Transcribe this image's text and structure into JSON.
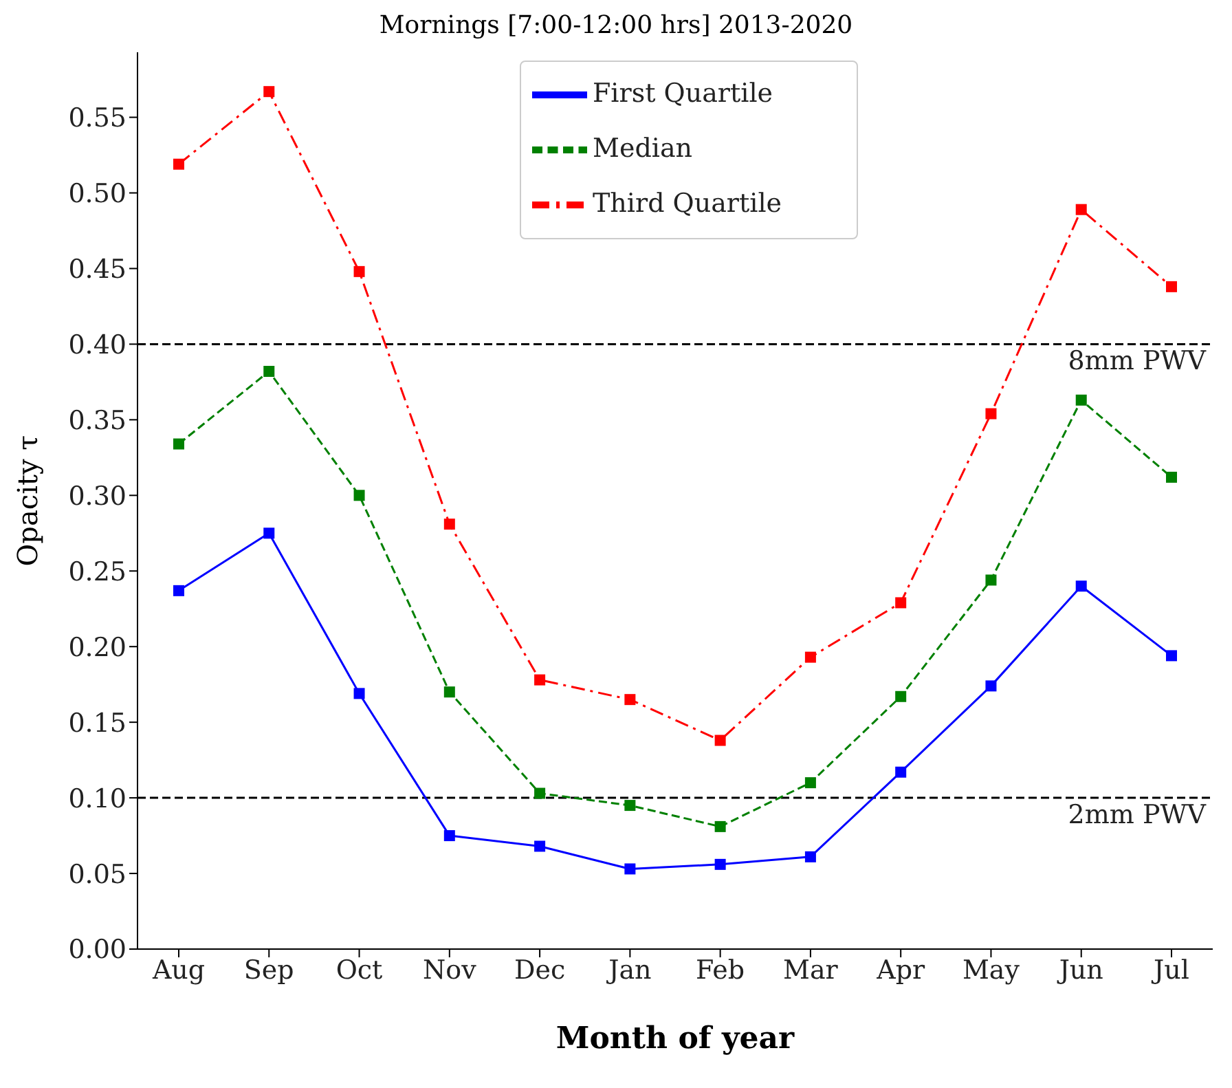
{
  "chart_data": {
    "type": "line",
    "title": "Mornings [7:00-12:00 hrs] 2013-2020",
    "xlabel": "Month of year",
    "ylabel": "Opacity τ",
    "categories": [
      "Aug",
      "Sep",
      "Oct",
      "Nov",
      "Dec",
      "Jan",
      "Feb",
      "Mar",
      "Apr",
      "May",
      "Jun",
      "Jul"
    ],
    "series": [
      {
        "name": "First Quartile",
        "color": "#0000ff",
        "line_style": "solid",
        "values": [
          0.237,
          0.275,
          0.169,
          0.075,
          0.068,
          0.053,
          0.056,
          0.061,
          0.117,
          0.174,
          0.24,
          0.194
        ]
      },
      {
        "name": "Median",
        "color": "#008000",
        "line_style": "dashed",
        "values": [
          0.334,
          0.382,
          0.3,
          0.17,
          0.103,
          0.095,
          0.081,
          0.11,
          0.167,
          0.244,
          0.363,
          0.312
        ]
      },
      {
        "name": "Third Quartile",
        "color": "#ff0000",
        "line_style": "dashdot",
        "values": [
          0.519,
          0.567,
          0.448,
          0.281,
          0.178,
          0.165,
          0.138,
          0.193,
          0.229,
          0.354,
          0.489,
          0.438
        ]
      }
    ],
    "ylim": [
      0,
      0.593
    ],
    "yticks": [
      {
        "value": 0,
        "label": "0.00"
      },
      {
        "value": 0.05,
        "label": "0.05"
      },
      {
        "value": 0.1,
        "label": "0.10"
      },
      {
        "value": 0.15,
        "label": "0.15"
      },
      {
        "value": 0.2,
        "label": "0.20"
      },
      {
        "value": 0.25,
        "label": "0.25"
      },
      {
        "value": 0.3,
        "label": "0.30"
      },
      {
        "value": 0.35,
        "label": "0.35"
      },
      {
        "value": 0.4,
        "label": "0.40"
      },
      {
        "value": 0.45,
        "label": "0.45"
      },
      {
        "value": 0.5,
        "label": "0.50"
      },
      {
        "value": 0.55,
        "label": "0.55"
      }
    ],
    "ref_lines": [
      {
        "axis": "y",
        "value": 0.4,
        "label": "8mm PWV",
        "color": "#000000",
        "line_style": "dashed"
      },
      {
        "axis": "y",
        "value": 0.1,
        "label": "2mm PWV",
        "color": "#000000",
        "line_style": "dashed"
      }
    ],
    "grid": false,
    "legend": "top",
    "marker": "square"
  }
}
